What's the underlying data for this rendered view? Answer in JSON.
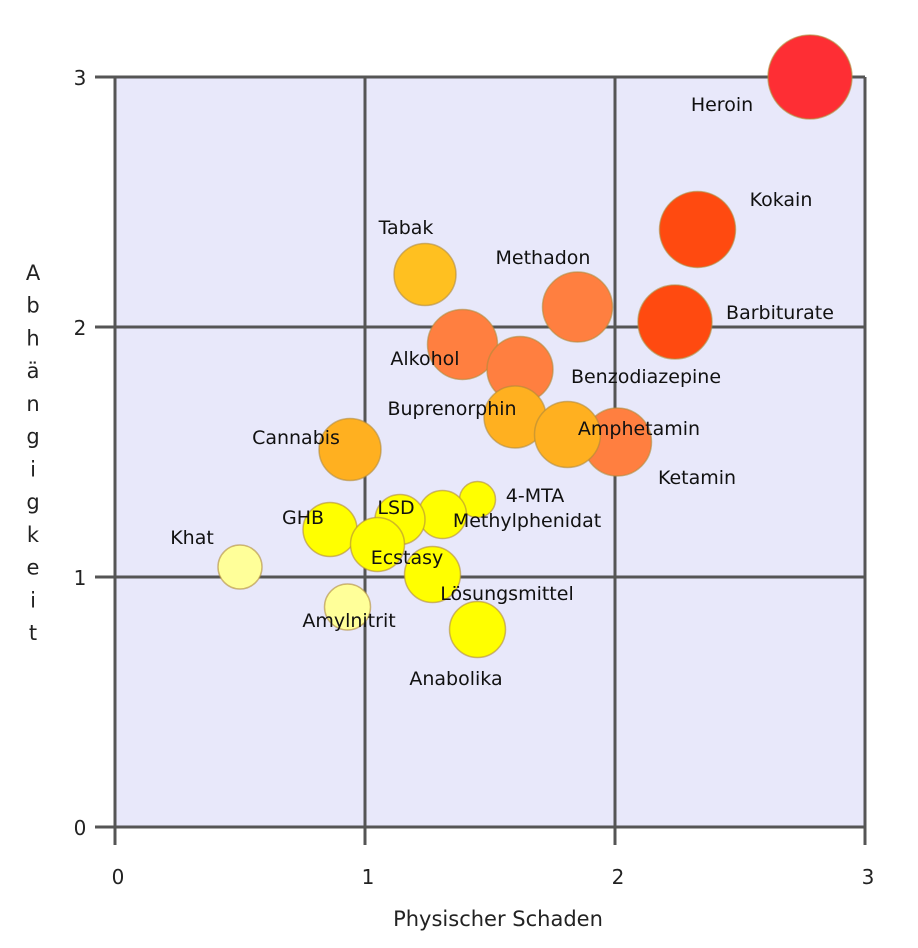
{
  "chart_data": {
    "type": "scatter",
    "title": "",
    "xlabel": "Physischer Schaden",
    "ylabel": "Abhängigkeit",
    "xlim": [
      0,
      3
    ],
    "ylim": [
      0,
      3
    ],
    "xticks": [
      "0",
      "1",
      "2",
      "3"
    ],
    "yticks": [
      "0",
      "1",
      "2",
      "3"
    ],
    "grid": true,
    "background": "#e8e8fa",
    "points": [
      {
        "label": "Heroin",
        "x": 2.78,
        "y": 3.0,
        "color": "#fe2e34"
      },
      {
        "label": "Kokain",
        "x": 2.33,
        "y": 2.39,
        "color": "#ff4a10"
      },
      {
        "label": "Barbiturate",
        "x": 2.24,
        "y": 2.02,
        "color": "#ff4a10"
      },
      {
        "label": "Methadon",
        "x": 1.85,
        "y": 2.08,
        "color": "#ff7f40"
      },
      {
        "label": "Tabak",
        "x": 1.24,
        "y": 2.21,
        "color": "#ffc020"
      },
      {
        "label": "Alkohol",
        "x": 1.39,
        "y": 1.93,
        "color": "#ff7f40"
      },
      {
        "label": "Benzodiazepine",
        "x": 1.62,
        "y": 1.83,
        "color": "#ff7f40"
      },
      {
        "label": "Ketamin",
        "x": 2.01,
        "y": 1.54,
        "color": "#ff7f40"
      },
      {
        "label": "Buprenorphin",
        "x": 1.6,
        "y": 1.64,
        "color": "#ffb020"
      },
      {
        "label": "Amphetamin",
        "x": 1.81,
        "y": 1.57,
        "color": "#ffb020"
      },
      {
        "label": "Cannabis",
        "x": 0.94,
        "y": 1.51,
        "color": "#ffb020"
      },
      {
        "label": "4-MTA",
        "x": 1.45,
        "y": 1.31,
        "color": "#ffff00"
      },
      {
        "label": "Methylphenidat",
        "x": 1.31,
        "y": 1.25,
        "color": "#ffff00"
      },
      {
        "label": "LSD",
        "x": 1.14,
        "y": 1.23,
        "color": "#ffff00"
      },
      {
        "label": "GHB",
        "x": 0.86,
        "y": 1.19,
        "color": "#ffff00"
      },
      {
        "label": "Ecstasy",
        "x": 1.05,
        "y": 1.13,
        "color": "#ffff00"
      },
      {
        "label": "Khat",
        "x": 0.5,
        "y": 1.04,
        "color": "#ffff99"
      },
      {
        "label": "Lösungsmittel",
        "x": 1.27,
        "y": 1.01,
        "color": "#ffff00"
      },
      {
        "label": "Amylnitrit",
        "x": 0.93,
        "y": 0.88,
        "color": "#ffff99"
      },
      {
        "label": "Anabolika",
        "x": 1.45,
        "y": 0.79,
        "color": "#ffff00"
      }
    ]
  }
}
